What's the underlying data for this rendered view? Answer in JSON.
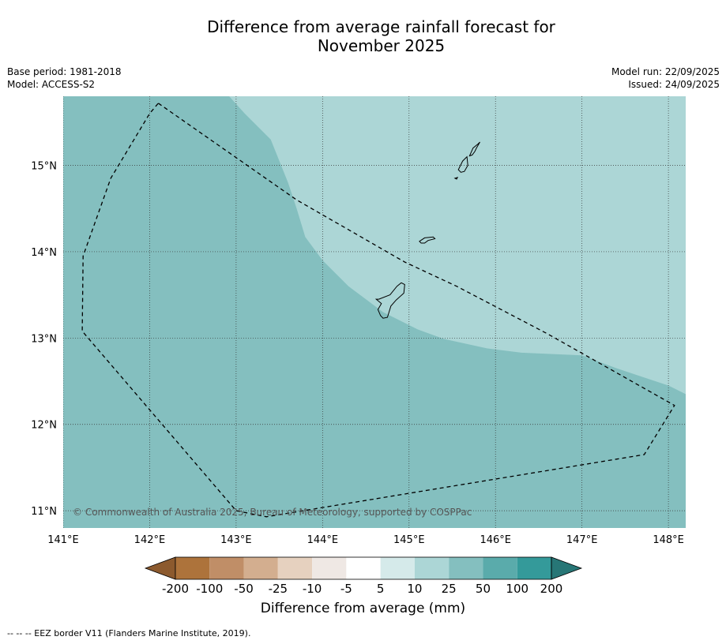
{
  "title": {
    "line1": "Difference from average rainfall forecast for",
    "line2": "November 2025"
  },
  "meta": {
    "base_period": "Base period: 1981-2018",
    "model": "Model: ACCESS-S2",
    "model_run": "Model run: 22/09/2025",
    "issued": "Issued: 24/09/2025"
  },
  "map": {
    "copyright": "© Commonwealth of Australia 2025, Bureau of Meteorology, supported by COSPPac",
    "lon_range": [
      141.0,
      148.2
    ],
    "lat_range": [
      10.8,
      15.8
    ],
    "lon_ticks": [
      141,
      142,
      143,
      144,
      145,
      146,
      147,
      148
    ],
    "lat_ticks": [
      11,
      12,
      13,
      14,
      15
    ],
    "lon_tick_labels": [
      "141°E",
      "142°E",
      "143°E",
      "144°E",
      "145°E",
      "146°E",
      "147°E",
      "148°E"
    ],
    "lat_tick_labels": [
      "11°N",
      "12°N",
      "13°N",
      "14°N",
      "15°N"
    ],
    "colors": {
      "band_50_100": "#84bfbf",
      "band_25_50": "#acd6d6"
    },
    "regions": [
      {
        "name": "25 to 50 mm",
        "color_key": "band_25_50",
        "lonlat": [
          [
            143.0,
            15.8
          ],
          [
            148.2,
            15.8
          ],
          [
            148.2,
            12.35
          ],
          [
            148.0,
            12.45
          ],
          [
            147.7,
            12.55
          ],
          [
            147.4,
            12.65
          ],
          [
            147.0,
            12.8
          ],
          [
            146.3,
            12.83
          ],
          [
            145.9,
            12.88
          ],
          [
            145.4,
            12.99
          ],
          [
            145.1,
            13.1
          ],
          [
            144.7,
            13.3
          ],
          [
            144.3,
            13.6
          ],
          [
            144.0,
            13.9
          ],
          [
            143.8,
            14.17
          ],
          [
            143.7,
            14.5
          ],
          [
            143.6,
            14.8
          ],
          [
            143.4,
            15.3
          ],
          [
            143.1,
            15.6
          ],
          [
            142.92,
            15.8
          ]
        ]
      }
    ],
    "eez": [
      [
        142.1,
        15.72
      ],
      [
        143.7,
        14.6
      ],
      [
        144.95,
        13.88
      ],
      [
        145.55,
        13.6
      ],
      [
        146.6,
        13.05
      ],
      [
        148.07,
        12.22
      ],
      [
        147.72,
        11.65
      ],
      [
        143.35,
        10.93
      ],
      [
        143.0,
        11.0
      ],
      [
        141.22,
        13.08
      ],
      [
        141.23,
        13.95
      ],
      [
        141.55,
        14.85
      ],
      [
        142.0,
        15.6
      ]
    ],
    "islands": [
      {
        "name": "Guam",
        "lonlat": [
          [
            144.65,
            13.45
          ],
          [
            144.78,
            13.5
          ],
          [
            144.86,
            13.6
          ],
          [
            144.91,
            13.64
          ],
          [
            144.95,
            13.62
          ],
          [
            144.94,
            13.52
          ],
          [
            144.85,
            13.44
          ],
          [
            144.79,
            13.37
          ],
          [
            144.75,
            13.24
          ],
          [
            144.7,
            13.23
          ],
          [
            144.67,
            13.26
          ],
          [
            144.64,
            13.33
          ],
          [
            144.68,
            13.4
          ],
          [
            144.62,
            13.45
          ]
        ]
      },
      {
        "name": "Rota",
        "lonlat": [
          [
            145.12,
            14.12
          ],
          [
            145.18,
            14.16
          ],
          [
            145.28,
            14.17
          ],
          [
            145.3,
            14.15
          ],
          [
            145.22,
            14.13
          ],
          [
            145.18,
            14.1
          ],
          [
            145.14,
            14.1
          ]
        ]
      },
      {
        "name": "Tinian",
        "lonlat": [
          [
            145.57,
            14.95
          ],
          [
            145.62,
            15.05
          ],
          [
            145.67,
            15.1
          ],
          [
            145.68,
            15.0
          ],
          [
            145.64,
            14.93
          ],
          [
            145.6,
            14.92
          ]
        ]
      },
      {
        "name": "Saipan",
        "lonlat": [
          [
            145.7,
            15.11
          ],
          [
            145.74,
            15.2
          ],
          [
            145.8,
            15.25
          ],
          [
            145.82,
            15.27
          ],
          [
            145.78,
            15.2
          ],
          [
            145.76,
            15.16
          ],
          [
            145.73,
            15.12
          ]
        ]
      },
      {
        "name": "Aguijan",
        "lonlat": [
          [
            145.53,
            14.85
          ],
          [
            145.56,
            14.86
          ],
          [
            145.55,
            14.84
          ]
        ]
      }
    ]
  },
  "colorbar": {
    "title": "Difference from average (mm)",
    "labels": [
      "-200",
      "-100",
      "-50",
      "-25",
      "-10",
      "-5",
      "5",
      "10",
      "25",
      "50",
      "100",
      "200"
    ],
    "colors": [
      "#8c5a2e",
      "#ad733b",
      "#c08e67",
      "#d3ae8f",
      "#e6d1bf",
      "#efe8e4",
      "#ffffff",
      "#d5eaea",
      "#acd6d6",
      "#84bfbf",
      "#5aabab",
      "#349a9a",
      "#277676"
    ]
  },
  "footnote": "--  --  -- EEZ border V11 (Flanders Marine Institute, 2019)."
}
